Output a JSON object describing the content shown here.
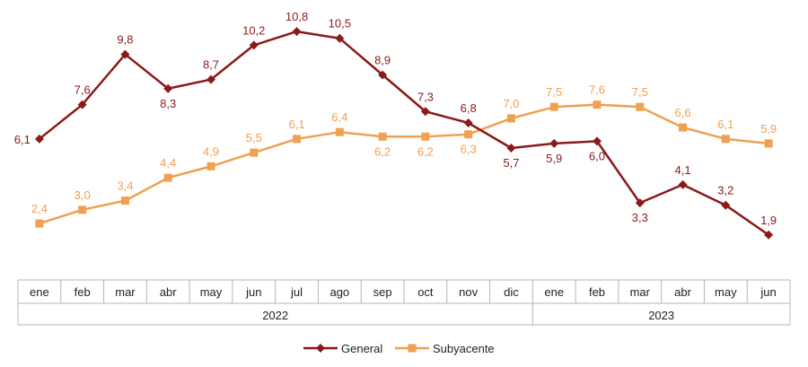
{
  "chart_data": {
    "type": "line",
    "categories": [
      "ene",
      "feb",
      "mar",
      "abr",
      "may",
      "jun",
      "jul",
      "ago",
      "sep",
      "oct",
      "nov",
      "dic",
      "ene",
      "feb",
      "mar",
      "abr",
      "may",
      "jun"
    ],
    "years": [
      {
        "label": "2022",
        "start": 0,
        "end": 11
      },
      {
        "label": "2023",
        "start": 12,
        "end": 17
      }
    ],
    "series": [
      {
        "name": "General",
        "color": "#8B1A1A",
        "marker": "diamond",
        "values": [
          6.1,
          7.6,
          9.8,
          8.3,
          8.7,
          10.2,
          10.8,
          10.5,
          8.9,
          7.3,
          6.8,
          5.7,
          5.9,
          6.0,
          3.3,
          4.1,
          3.2,
          1.9
        ],
        "labels": [
          "6,1",
          "7,6",
          "9,8",
          "8,3",
          "8,7",
          "10,2",
          "10,8",
          "10,5",
          "8,9",
          "7,3",
          "6,8",
          "5,7",
          "5,9",
          "6,0",
          "3,3",
          "4,1",
          "3,2",
          "1,9"
        ]
      },
      {
        "name": "Subyacente",
        "color": "#F0A050",
        "marker": "square",
        "values": [
          2.4,
          3.0,
          3.4,
          4.4,
          4.9,
          5.5,
          6.1,
          6.4,
          6.2,
          6.2,
          6.3,
          7.0,
          7.5,
          7.6,
          7.5,
          6.6,
          6.1,
          5.9
        ],
        "labels": [
          "2,4",
          "3,0",
          "3,4",
          "4,4",
          "4,9",
          "5,5",
          "6,1",
          "6,4",
          "6,2",
          "6,2",
          "6,3",
          "7,0",
          "7,5",
          "7,6",
          "7,5",
          "6,6",
          "6,1",
          "5,9"
        ]
      }
    ],
    "ylim": [
      1.5,
      11.0
    ],
    "grid": false,
    "legend_position": "bottom-center",
    "title": "",
    "xlabel": "",
    "ylabel": ""
  }
}
